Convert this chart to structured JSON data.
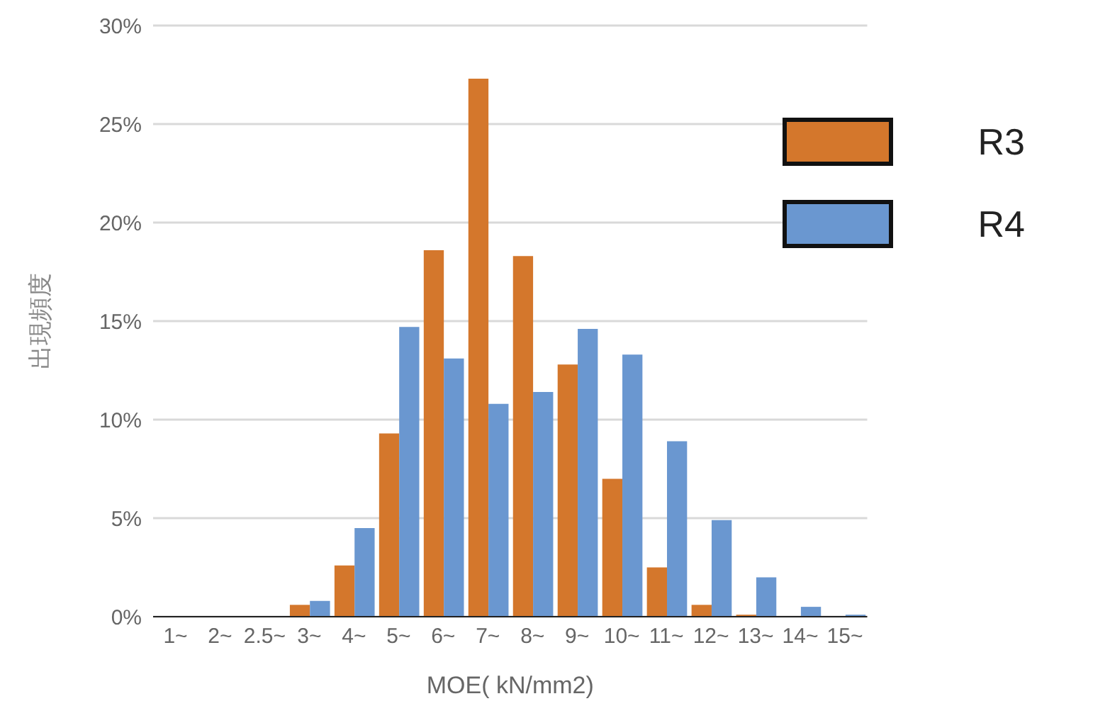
{
  "chart_data": {
    "type": "bar",
    "xlabel": "MOE( kN/mm2)",
    "ylabel": "出現頻度",
    "categories": [
      "1~",
      "2~",
      "2.5~",
      "3~",
      "4~",
      "5~",
      "6~",
      "7~",
      "8~",
      "9~",
      "10~",
      "11~",
      "12~",
      "13~",
      "14~",
      "15~"
    ],
    "series": [
      {
        "name": "R3",
        "color": "#d4772c",
        "values": [
          0,
          0,
          0,
          0.6,
          2.6,
          9.3,
          18.6,
          27.3,
          18.3,
          12.8,
          7.0,
          2.5,
          0.6,
          0.1,
          0,
          0
        ]
      },
      {
        "name": "R4",
        "color": "#6a97d0",
        "values": [
          0,
          0,
          0,
          0.8,
          4.5,
          14.7,
          13.1,
          10.8,
          11.4,
          14.6,
          13.3,
          8.9,
          4.9,
          2.0,
          0.5,
          0.1
        ]
      }
    ],
    "ylim": [
      0,
      30
    ],
    "yticks": [
      {
        "value": 0,
        "label": "0%"
      },
      {
        "value": 5,
        "label": "5%"
      },
      {
        "value": 10,
        "label": "10%"
      },
      {
        "value": 15,
        "label": "15%"
      },
      {
        "value": 20,
        "label": "20%"
      },
      {
        "value": 25,
        "label": "25%"
      },
      {
        "value": 30,
        "label": "30%"
      }
    ],
    "grid": "y",
    "legend": "top right"
  }
}
